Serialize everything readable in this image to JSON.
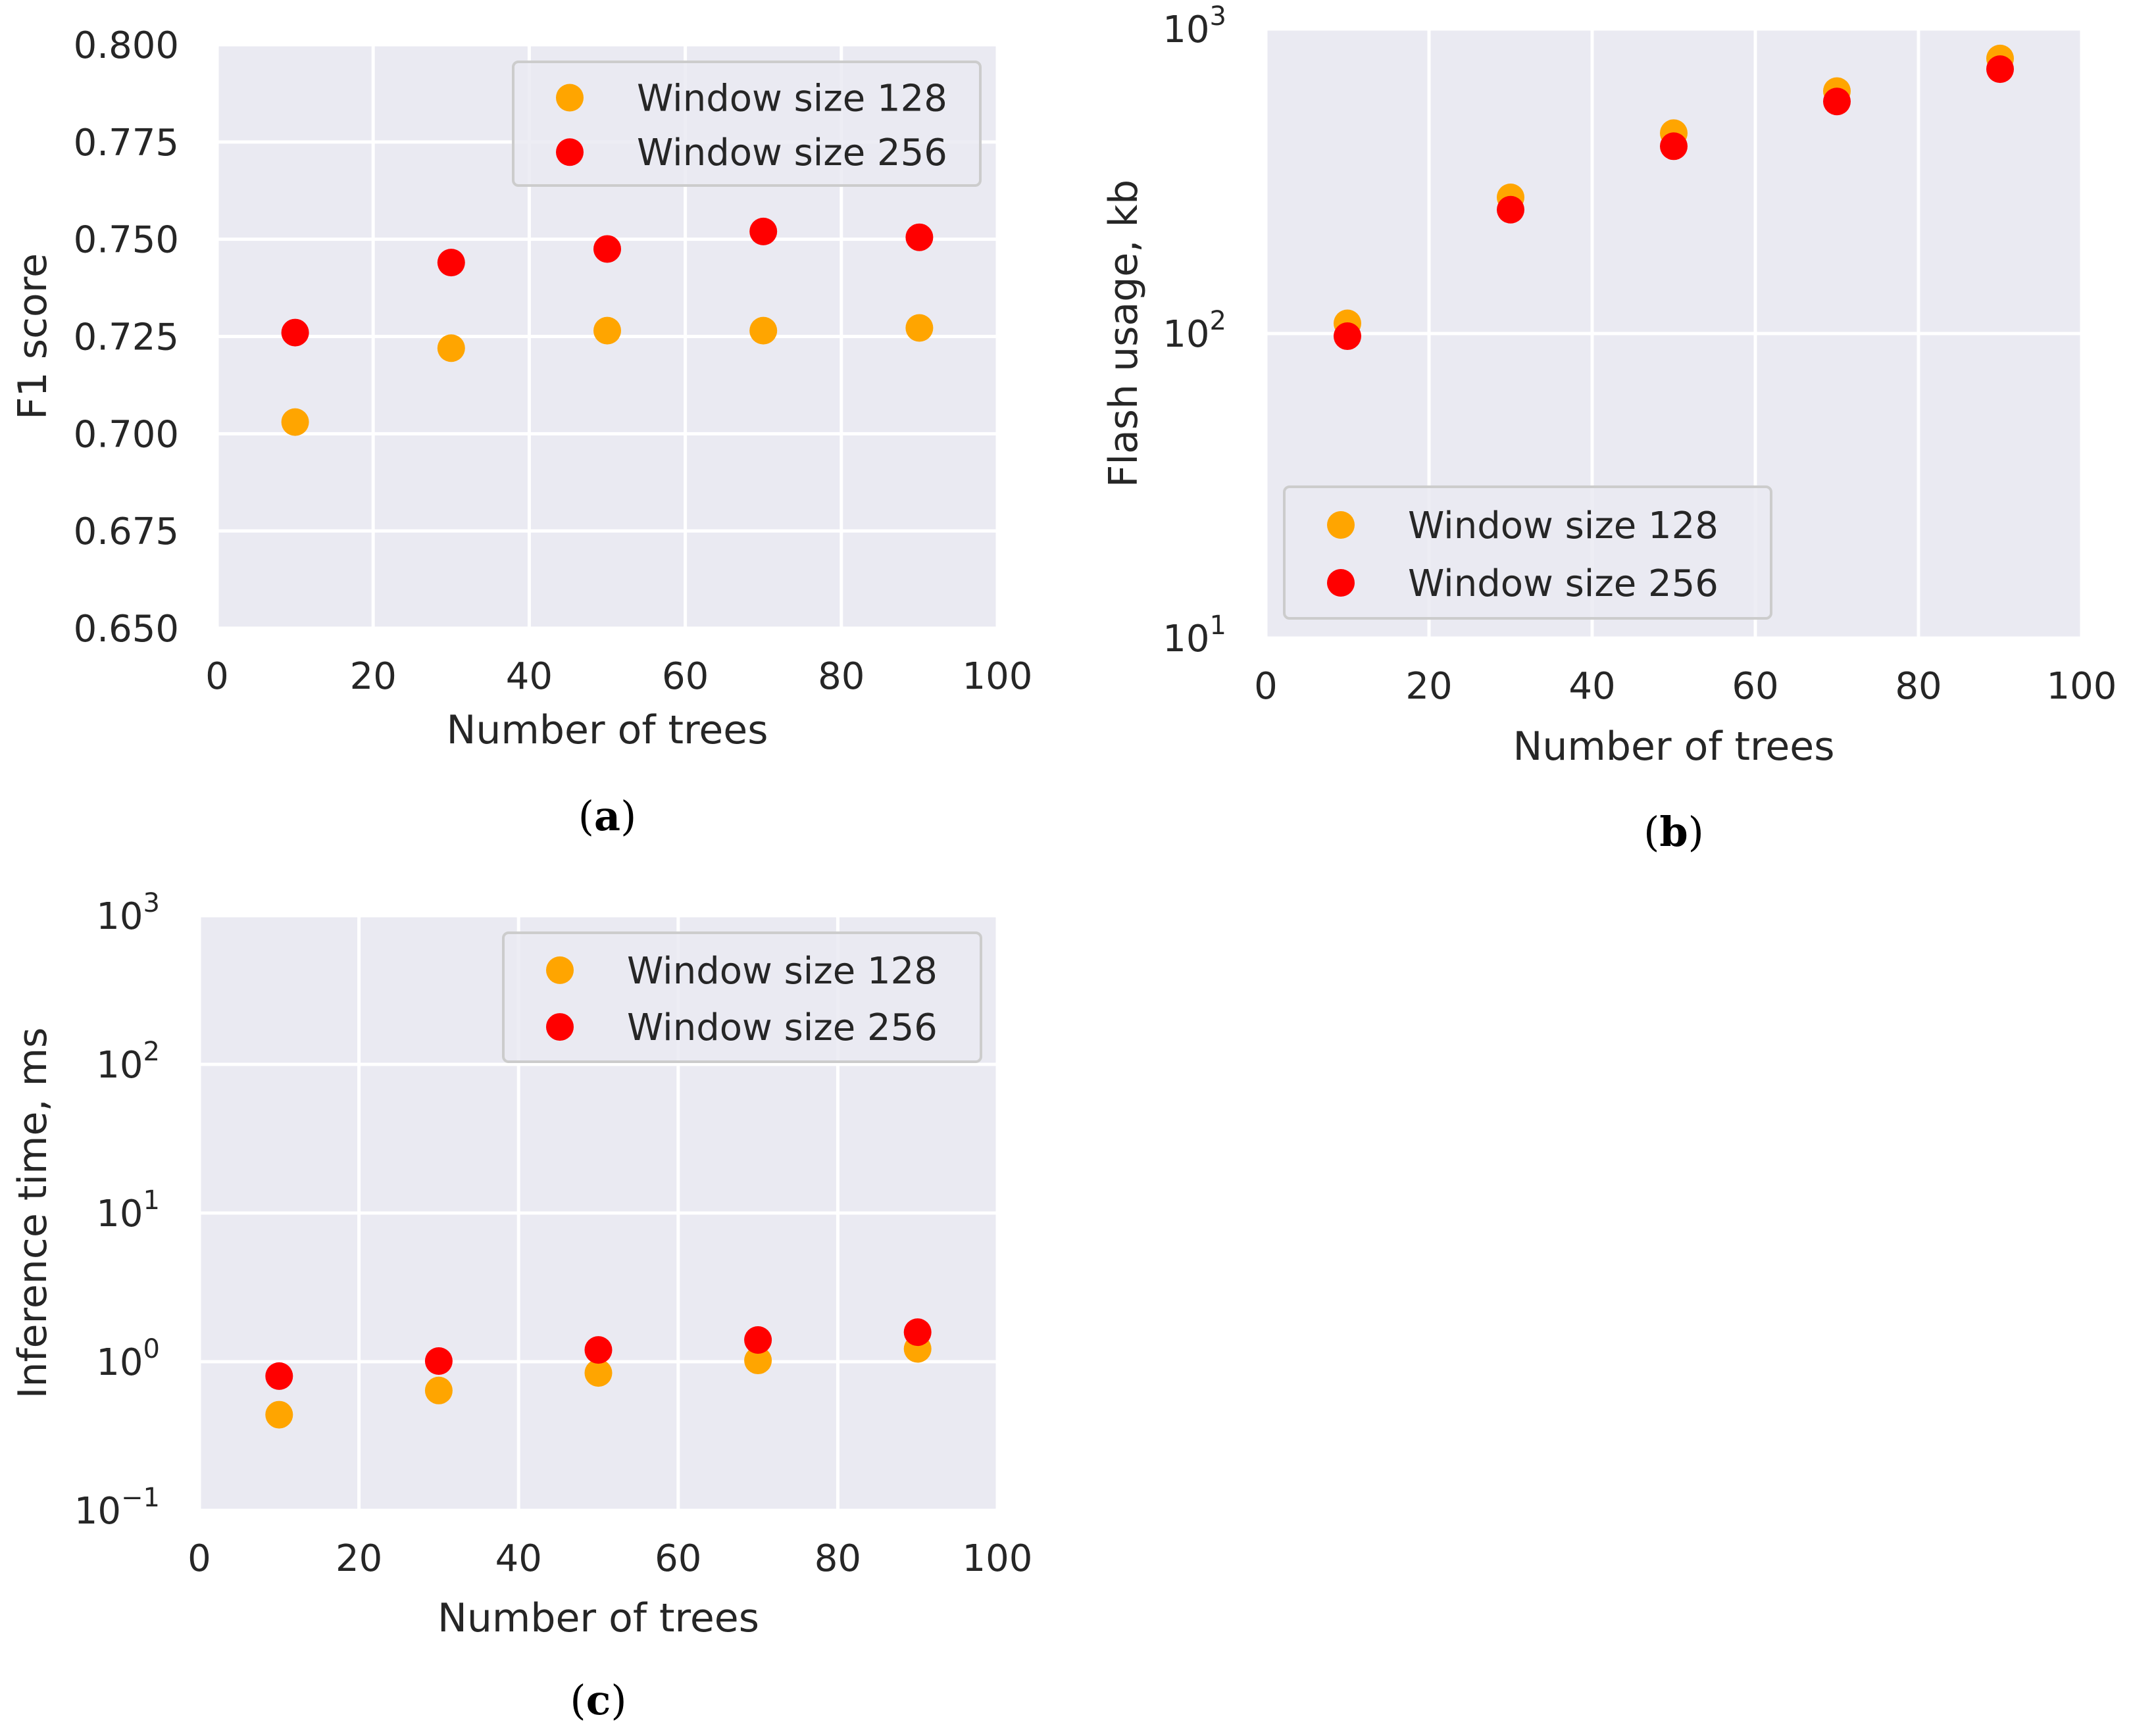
{
  "colors": {
    "background": "#eaeaf2",
    "grid": "#ffffff",
    "text": "#262626",
    "series_128": "#ffa500",
    "series_256": "#ff0000",
    "legend_border": "#cccccc"
  },
  "chart_data": [
    {
      "type": "scatter",
      "caption": "a",
      "xlabel": "Number of trees",
      "ylabel": "F1 score",
      "xlim": [
        0,
        100
      ],
      "ylim": [
        0.65,
        0.8
      ],
      "yscale": "linear",
      "xticks": [
        "0",
        "20",
        "40",
        "60",
        "80",
        "100"
      ],
      "yticks": [
        "0.650",
        "0.675",
        "0.700",
        "0.725",
        "0.750",
        "0.775",
        "0.800"
      ],
      "grid": true,
      "legend_position": "top-right",
      "series": [
        {
          "name": "Window size 128",
          "x": [
            10,
            30,
            50,
            70,
            90
          ],
          "y": [
            0.703,
            0.722,
            0.7265,
            0.7265,
            0.7272
          ]
        },
        {
          "name": "Window size 256",
          "x": [
            10,
            30,
            50,
            70,
            90
          ],
          "y": [
            0.726,
            0.744,
            0.7475,
            0.752,
            0.7505
          ]
        }
      ]
    },
    {
      "type": "scatter",
      "caption": "b",
      "xlabel": "Number of trees",
      "ylabel": "Flash usage, kb",
      "xlim": [
        0,
        100
      ],
      "ylim": [
        10,
        1000
      ],
      "yscale": "log",
      "xticks": [
        "0",
        "20",
        "40",
        "60",
        "80",
        "100"
      ],
      "yticks": [
        {
          "base": "10",
          "exp": "1"
        },
        {
          "base": "10",
          "exp": "2"
        },
        {
          "base": "10",
          "exp": "3"
        }
      ],
      "grid": true,
      "legend_position": "lower-left",
      "series": [
        {
          "name": "Window size 128",
          "x": [
            10,
            30,
            50,
            70,
            90
          ],
          "y": [
            108,
            280,
            455,
            625,
            800
          ]
        },
        {
          "name": "Window size 256",
          "x": [
            10,
            30,
            50,
            70,
            90
          ],
          "y": [
            98,
            255,
            412,
            578,
            738
          ]
        }
      ]
    },
    {
      "type": "scatter",
      "caption": "c",
      "xlabel": "Number of trees",
      "ylabel": "Inference time, ms",
      "xlim": [
        0,
        100
      ],
      "ylim": [
        0.1,
        1000
      ],
      "yscale": "log",
      "xticks": [
        "0",
        "20",
        "40",
        "60",
        "80",
        "100"
      ],
      "yticks": [
        {
          "base": "10",
          "exp": "−1"
        },
        {
          "base": "10",
          "exp": "0"
        },
        {
          "base": "10",
          "exp": "1"
        },
        {
          "base": "10",
          "exp": "2"
        },
        {
          "base": "10",
          "exp": "3"
        }
      ],
      "grid": true,
      "legend_position": "top-right",
      "series": [
        {
          "name": "Window size 128",
          "x": [
            10,
            30,
            50,
            70,
            90
          ],
          "y": [
            0.44,
            0.64,
            0.84,
            1.02,
            1.22
          ]
        },
        {
          "name": "Window size 256",
          "x": [
            10,
            30,
            50,
            70,
            90
          ],
          "y": [
            0.8,
            1.01,
            1.2,
            1.4,
            1.58
          ]
        }
      ]
    }
  ]
}
